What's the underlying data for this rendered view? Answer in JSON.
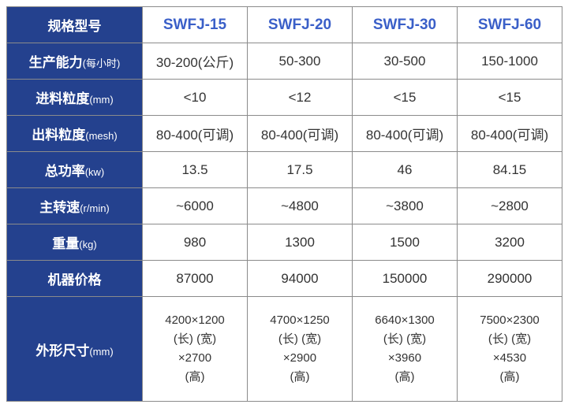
{
  "colors": {
    "header_bg": "#24418e",
    "header_fg": "#ffffff",
    "model_fg": "#3a5fc8",
    "cell_fg": "#333333",
    "border": "#8b8b8b",
    "bg": "#ffffff"
  },
  "fonts": {
    "header_size": 17,
    "model_size": 19,
    "cell_size": 17,
    "small_size": 13,
    "dim_size": 15
  },
  "header": {
    "spec": "规格型号",
    "models": [
      "SWFJ-15",
      "SWFJ-20",
      "SWFJ-30",
      "SWFJ-60"
    ]
  },
  "rows": [
    {
      "label": "生产能力",
      "sub": "(每小时)",
      "v": [
        "30-200(公斤)",
        "50-300",
        "30-500",
        "150-1000"
      ]
    },
    {
      "label": "进料粒度",
      "sub": "(mm)",
      "v": [
        "<10",
        "<12",
        "<15",
        "<15"
      ]
    },
    {
      "label": "出料粒度",
      "sub": "(mesh)",
      "v": [
        "80-400(可调)",
        "80-400(可调)",
        "80-400(可调)",
        "80-400(可调)"
      ]
    },
    {
      "label": "总功率",
      "sub": "(kw)",
      "v": [
        "13.5",
        "17.5",
        "46",
        "84.15"
      ]
    },
    {
      "label": "主转速",
      "sub": "(r/min)",
      "v": [
        "~6000",
        "~4800",
        "~3800",
        "~2800"
      ]
    },
    {
      "label": "重量",
      "sub": "(kg)",
      "v": [
        "980",
        "1300",
        "1500",
        "3200"
      ]
    },
    {
      "label": "机器价格",
      "sub": "",
      "v": [
        "87000",
        "94000",
        "150000",
        "290000"
      ]
    }
  ],
  "dim_row": {
    "label": "外形尺寸",
    "sub": "(mm)",
    "cells": [
      {
        "l1": "4200×1200",
        "l2": "(长)  (宽)",
        "l3": "×2700",
        "l4": "(高)"
      },
      {
        "l1": "4700×1250",
        "l2": "(长)  (宽)",
        "l3": "×2900",
        "l4": "(高)"
      },
      {
        "l1": "6640×1300",
        "l2": "(长)  (宽)",
        "l3": "×3960",
        "l4": "(高)"
      },
      {
        "l1": "7500×2300",
        "l2": "(长)  (宽)",
        "l3": "×4530",
        "l4": "(高)"
      }
    ]
  }
}
